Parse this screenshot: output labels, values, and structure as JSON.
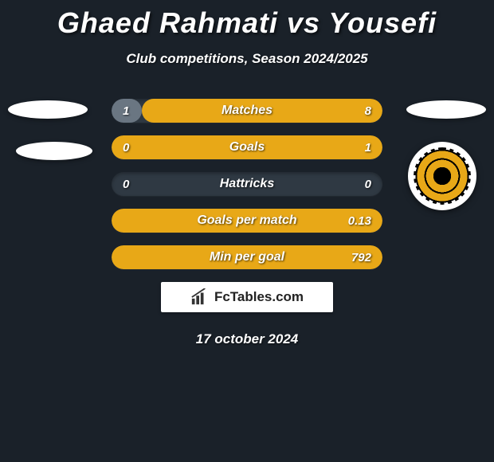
{
  "title": "Ghaed Rahmati vs Yousefi",
  "subtitle": "Club competitions, Season 2024/2025",
  "date": "17 october 2024",
  "branding_text": "FcTables.com",
  "colors": {
    "background": "#1a2129",
    "bar_track": "#2f3943",
    "left_player": "#6a7682",
    "right_player": "#e8a817",
    "text": "#ffffff"
  },
  "bars": [
    {
      "label": "Matches",
      "left": "1",
      "right": "8",
      "left_pct": 11.1,
      "right_pct": 88.9
    },
    {
      "label": "Goals",
      "left": "0",
      "right": "1",
      "left_pct": 0,
      "right_pct": 100
    },
    {
      "label": "Hattricks",
      "left": "0",
      "right": "0",
      "left_pct": 0,
      "right_pct": 0
    },
    {
      "label": "Goals per match",
      "left": "",
      "right": "0.13",
      "left_pct": 0,
      "right_pct": 100
    },
    {
      "label": "Min per goal",
      "left": "",
      "right": "792",
      "left_pct": 0,
      "right_pct": 100
    }
  ],
  "font": {
    "title_pt": 36,
    "subtitle_pt": 17,
    "bar_label_pt": 16,
    "bar_value_pt": 15,
    "date_pt": 17
  }
}
